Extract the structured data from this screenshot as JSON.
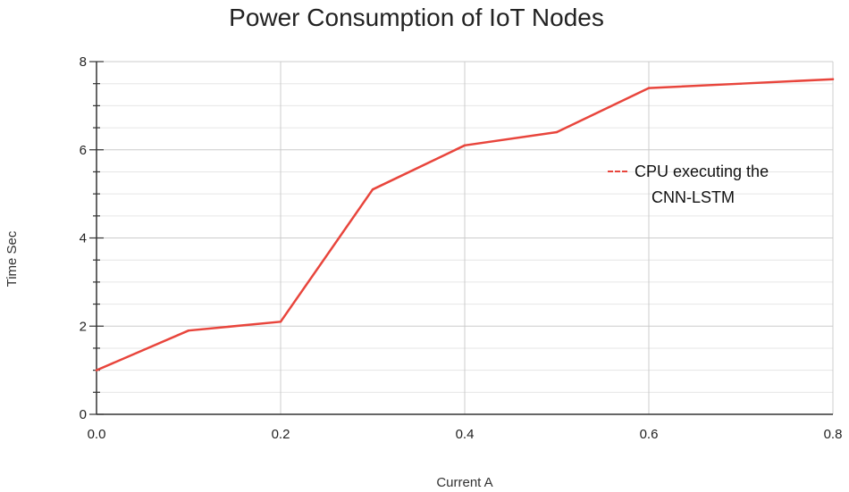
{
  "chart_data": {
    "type": "line",
    "title": "Power Consumption of IoT Nodes",
    "xlabel": "Current A",
    "ylabel": "Time Sec",
    "xlim": [
      0,
      0.8
    ],
    "ylim": [
      0,
      8
    ],
    "x_ticks": [
      "0.0",
      "0.2",
      "0.4",
      "0.6",
      "0.8"
    ],
    "y_ticks": [
      "0",
      "2",
      "4",
      "6",
      "8"
    ],
    "grid": true,
    "legend_position": "right",
    "series": [
      {
        "name_lines": [
          "CPU executing the",
          "CNN-LSTM"
        ],
        "color": "#e8453c",
        "x": [
          0.0,
          0.1,
          0.2,
          0.3,
          0.4,
          0.5,
          0.6,
          0.7,
          0.8
        ],
        "y": [
          1.0,
          1.9,
          2.1,
          5.1,
          6.1,
          6.4,
          7.4,
          7.5,
          7.6
        ]
      }
    ]
  }
}
